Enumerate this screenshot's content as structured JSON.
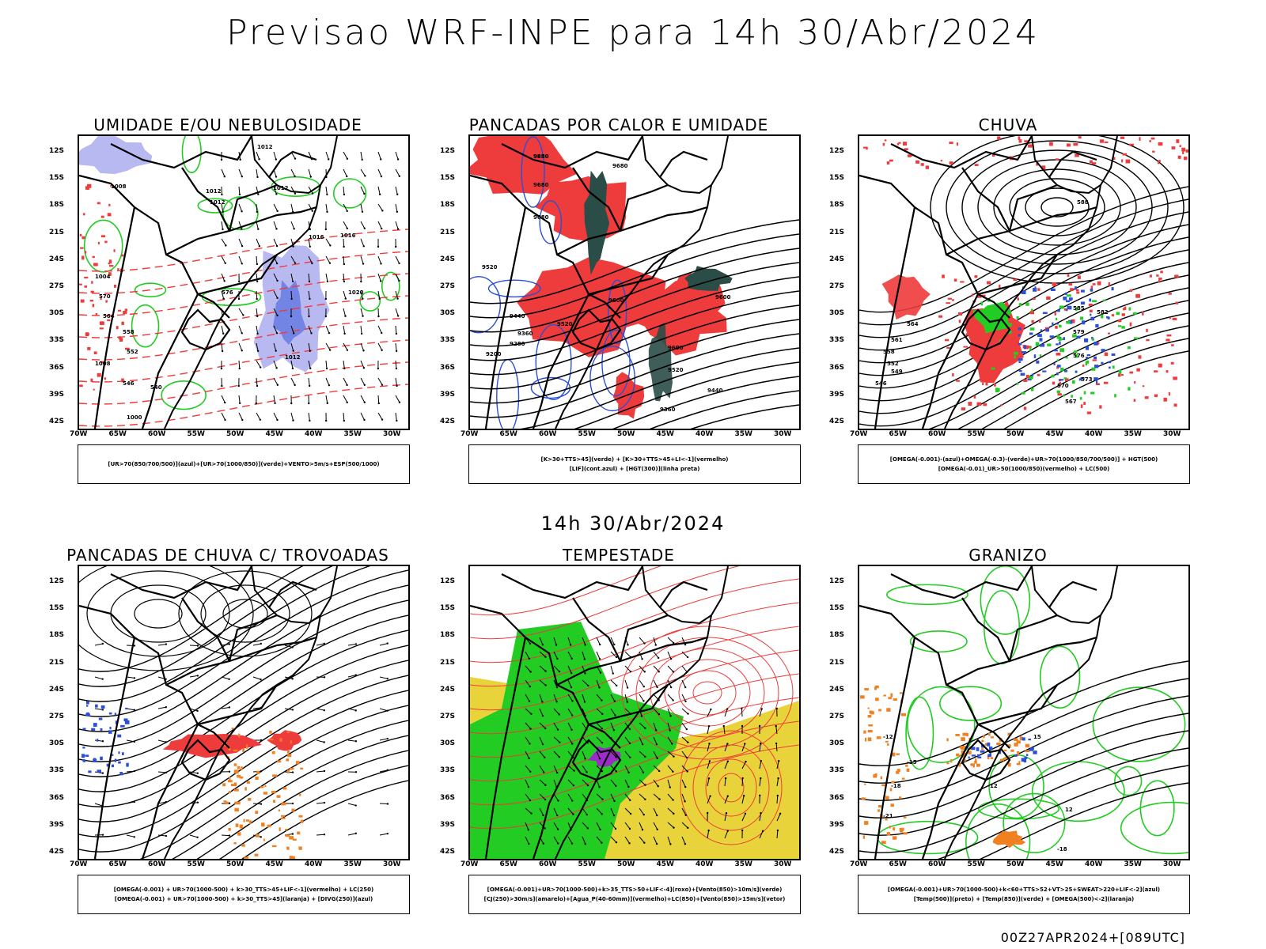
{
  "main_title": "Previsao WRF-INPE  para 14h 30/Abr/2024",
  "mid_title": "14h 30/Abr/2024",
  "footer": "00Z27APR2024+[089UTC]",
  "lat_labels": [
    "12S",
    "15S",
    "18S",
    "21S",
    "24S",
    "27S",
    "30S",
    "33S",
    "36S",
    "39S",
    "42S"
  ],
  "lon_labels": [
    "70W",
    "65W",
    "60W",
    "55W",
    "50W",
    "45W",
    "40W",
    "35W",
    "30W"
  ],
  "panels": [
    {
      "title": "UMIDADE E/OU NEBULOSIDADE",
      "legend": [
        "[UR>70(850/700/500)](azul)+[UR>70(1000/850)](verde)+VENTO>5m/s+ESP(500/1000)"
      ],
      "contour_labels": [
        "1012",
        "1012",
        "1012",
        "1008",
        "1012",
        "1016",
        "1016",
        "1020",
        "1012",
        "1008",
        "1004",
        "1000",
        "576",
        "570",
        "564",
        "558",
        "552",
        "546",
        "540"
      ]
    },
    {
      "title": "PANCADAS POR CALOR E UMIDADE",
      "legend": [
        "[K>30+TTS>45](verde) + [K>30+TTS>45+LI<-1](vermelho)",
        "[LIF](cont.azul) + [HGT(300)](linha preta)"
      ],
      "contour_labels": [
        "9680",
        "9680",
        "9680",
        "9680",
        "9600",
        "9600",
        "9520",
        "9520",
        "9440",
        "9360",
        "9280",
        "9200",
        "9600",
        "9520",
        "9440",
        "9360",
        "9280"
      ]
    },
    {
      "title": "CHUVA",
      "legend": [
        "[OMEGA(-0.001)-(azul)+OMEGA(-0.3)-(verde)+UR>70(1000/850/700/500)] + HGT(500)",
        "[OMEGA(-0.01)_UR>50(1000/850)(vermelho) + LC(500)"
      ],
      "contour_labels": [
        "588",
        "585",
        "582",
        "579",
        "576",
        "573",
        "570",
        "567",
        "564",
        "561",
        "558",
        "552",
        "549",
        "546"
      ]
    },
    {
      "title": "PANCADAS DE CHUVA C/ TROVOADAS",
      "legend": [
        "[OMEGA(-0.001) + UR>70(1000-500) + k>30_TTS>45+LIF<-1](vermelho) + LC(250)",
        "[OMEGA(-0.001) + UR>70(1000-500) + k>30_TTS>45](laranja) + [DIVG(250)](azul)"
      ],
      "contour_labels": []
    },
    {
      "title": "TEMPESTADE",
      "legend": [
        "[OMEGA(-0.001)+UR>70(1000-500)+k>35_TTS>50+LIF<-4](roxo)+[Vento(850)>10m/s](verde)",
        "[CJ(250)>30m/s](amarelo)+[Agua_P(40-60mm)](vermelho)+LC(850)+[Vento(850)>15m/s](vetor)"
      ],
      "contour_labels": []
    },
    {
      "title": "GRANIZO",
      "legend": [
        "[OMEGA(-0.001)+UR>70(1000-500)+k<60+TTS>52+VT>25+SWEAT>220+LIF<-2](azul)",
        "[Temp(500)](preto) + [Temp(850)](verde) + [OMEGA(500)<-2](laranja)"
      ],
      "contour_labels": [
        "-12",
        "-15",
        "-18",
        "-21",
        "12",
        "15",
        "12",
        "-18"
      ]
    }
  ],
  "colors": {
    "blue": "#2b4fd8",
    "green": "#22cc22",
    "red": "#ee3b3b",
    "orange": "#f08020",
    "yellow": "#e8d43a",
    "dark_teal": "#2a4d47",
    "lavender": "#a8a8ee",
    "purple": "#9c2cc8"
  }
}
